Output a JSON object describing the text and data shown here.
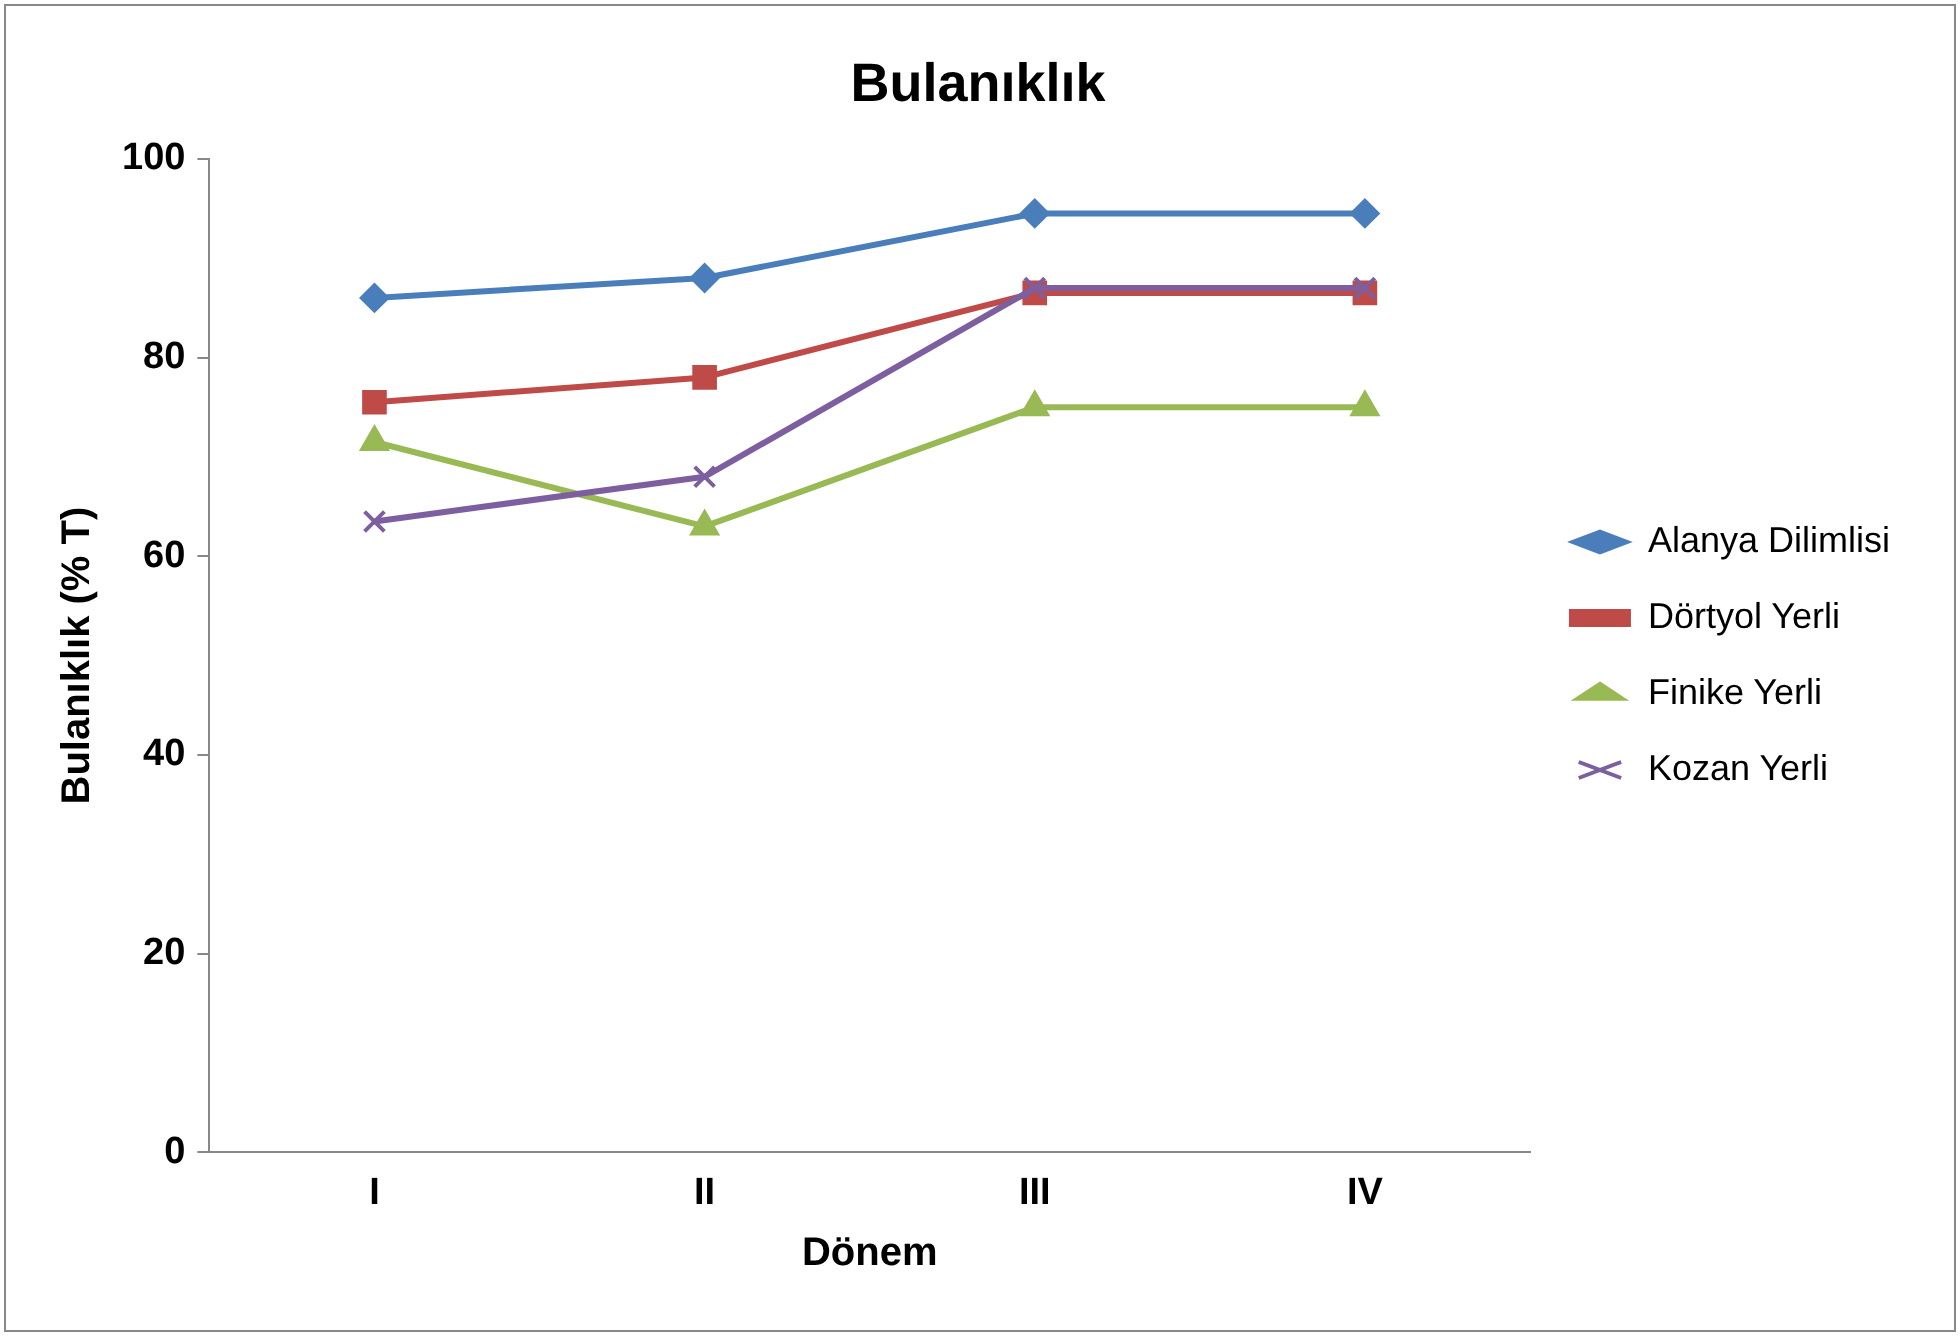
{
  "chart_data": {
    "type": "line",
    "title": "Bulanıklık",
    "xlabel": "Dönem",
    "ylabel": "Bulanıklık (% T)",
    "categories": [
      "I",
      "II",
      "III",
      "IV"
    ],
    "series": [
      {
        "name": "Alanya Dilimlisi",
        "color": "#4a7ebb",
        "marker": "diamond",
        "values": [
          86,
          88,
          94.5,
          94.5
        ]
      },
      {
        "name": "Dörtyol Yerli",
        "color": "#be4b48",
        "marker": "square",
        "values": [
          75.5,
          78,
          86.5,
          86.5
        ]
      },
      {
        "name": "Finike Yerli",
        "color": "#98b954",
        "marker": "triangle",
        "values": [
          71.5,
          63,
          75,
          75
        ]
      },
      {
        "name": "Kozan Yerli",
        "color": "#7d5fa0",
        "marker": "cross",
        "values": [
          63.5,
          68,
          87,
          87
        ]
      }
    ],
    "ylim": [
      0,
      100
    ],
    "yticks": [
      0,
      20,
      40,
      60,
      80,
      100
    ],
    "grid": false,
    "legend": "right"
  }
}
